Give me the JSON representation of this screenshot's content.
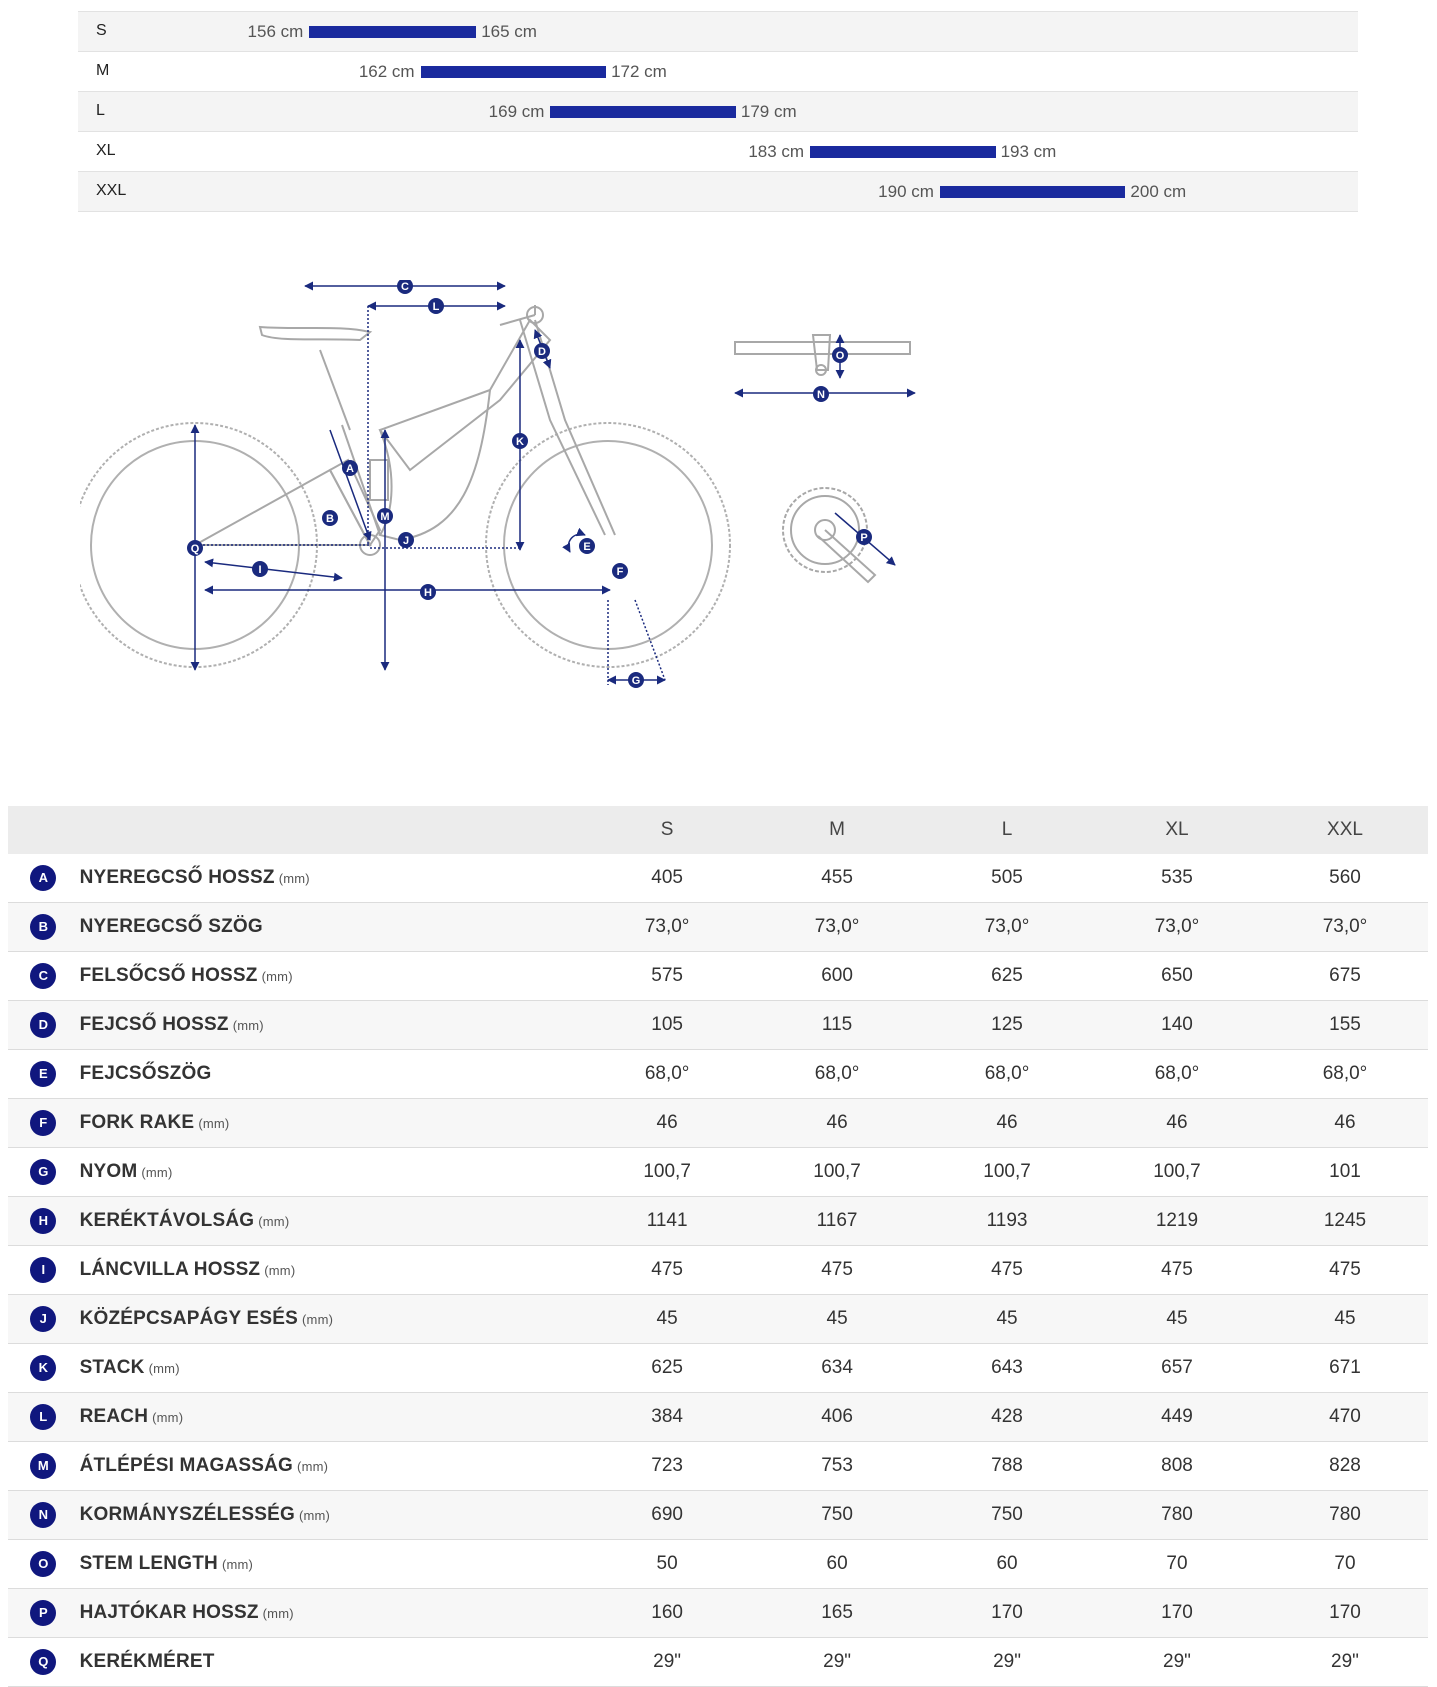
{
  "size_chart": {
    "rows": [
      {
        "size": "S",
        "min_label": "156 cm",
        "max_label": "165 cm",
        "min": 156,
        "max": 165
      },
      {
        "size": "M",
        "min_label": "162 cm",
        "max_label": "172 cm",
        "min": 162,
        "max": 172
      },
      {
        "size": "L",
        "min_label": "169 cm",
        "max_label": "179 cm",
        "min": 169,
        "max": 179
      },
      {
        "size": "XL",
        "min_label": "183 cm",
        "max_label": "193 cm",
        "min": 183,
        "max": 193
      },
      {
        "size": "XXL",
        "min_label": "190 cm",
        "max_label": "200 cm",
        "min": 190,
        "max": 200
      }
    ]
  },
  "diagram": {
    "labels": [
      "A",
      "B",
      "C",
      "D",
      "E",
      "F",
      "G",
      "H",
      "I",
      "J",
      "K",
      "L",
      "M",
      "N",
      "O",
      "P",
      "Q"
    ]
  },
  "geometry": {
    "columns": [
      "S",
      "M",
      "L",
      "XL",
      "XXL"
    ],
    "rows": [
      {
        "badge": "A",
        "name": "NYEREGCSŐ HOSSZ",
        "unit": "(mm)",
        "values": [
          "405",
          "455",
          "505",
          "535",
          "560"
        ]
      },
      {
        "badge": "B",
        "name": "NYEREGCSŐ SZÖG",
        "unit": "",
        "values": [
          "73,0°",
          "73,0°",
          "73,0°",
          "73,0°",
          "73,0°"
        ]
      },
      {
        "badge": "C",
        "name": "FELSŐCSŐ HOSSZ",
        "unit": "(mm)",
        "values": [
          "575",
          "600",
          "625",
          "650",
          "675"
        ]
      },
      {
        "badge": "D",
        "name": "FEJCSŐ HOSSZ",
        "unit": "(mm)",
        "values": [
          "105",
          "115",
          "125",
          "140",
          "155"
        ]
      },
      {
        "badge": "E",
        "name": "FEJCSŐSZÖG",
        "unit": "",
        "values": [
          "68,0°",
          "68,0°",
          "68,0°",
          "68,0°",
          "68,0°"
        ]
      },
      {
        "badge": "F",
        "name": "FORK RAKE",
        "unit": "(mm)",
        "values": [
          "46",
          "46",
          "46",
          "46",
          "46"
        ]
      },
      {
        "badge": "G",
        "name": "NYOM",
        "unit": "(mm)",
        "values": [
          "100,7",
          "100,7",
          "100,7",
          "100,7",
          "101"
        ]
      },
      {
        "badge": "H",
        "name": "KERÉKTÁVOLSÁG",
        "unit": "(mm)",
        "values": [
          "1141",
          "1167",
          "1193",
          "1219",
          "1245"
        ]
      },
      {
        "badge": "I",
        "name": "LÁNCVILLA HOSSZ",
        "unit": "(mm)",
        "values": [
          "475",
          "475",
          "475",
          "475",
          "475"
        ]
      },
      {
        "badge": "J",
        "name": "KÖZÉPCSAPÁGY ESÉS",
        "unit": "(mm)",
        "values": [
          "45",
          "45",
          "45",
          "45",
          "45"
        ]
      },
      {
        "badge": "K",
        "name": "STACK",
        "unit": "(mm)",
        "values": [
          "625",
          "634",
          "643",
          "657",
          "671"
        ]
      },
      {
        "badge": "L",
        "name": "REACH",
        "unit": "(mm)",
        "values": [
          "384",
          "406",
          "428",
          "449",
          "470"
        ]
      },
      {
        "badge": "M",
        "name": "ÁTLÉPÉSI MAGASSÁG",
        "unit": "(mm)",
        "values": [
          "723",
          "753",
          "788",
          "808",
          "828"
        ]
      },
      {
        "badge": "N",
        "name": "KORMÁNYSZÉLESSÉG",
        "unit": "(mm)",
        "values": [
          "690",
          "750",
          "750",
          "780",
          "780"
        ]
      },
      {
        "badge": "O",
        "name": "STEM LENGTH",
        "unit": "(mm)",
        "values": [
          "50",
          "60",
          "60",
          "70",
          "70"
        ]
      },
      {
        "badge": "P",
        "name": "HAJTÓKAR HOSSZ",
        "unit": "(mm)",
        "values": [
          "160",
          "165",
          "170",
          "170",
          "170"
        ]
      },
      {
        "badge": "Q",
        "name": "KERÉKMÉRET",
        "unit": "",
        "values": [
          "29\"",
          "29\"",
          "29\"",
          "29\"",
          "29\""
        ]
      }
    ]
  },
  "colors": {
    "accent": "#1a2a9e",
    "badge": "#10177e",
    "frame": "#aaaaaa"
  }
}
